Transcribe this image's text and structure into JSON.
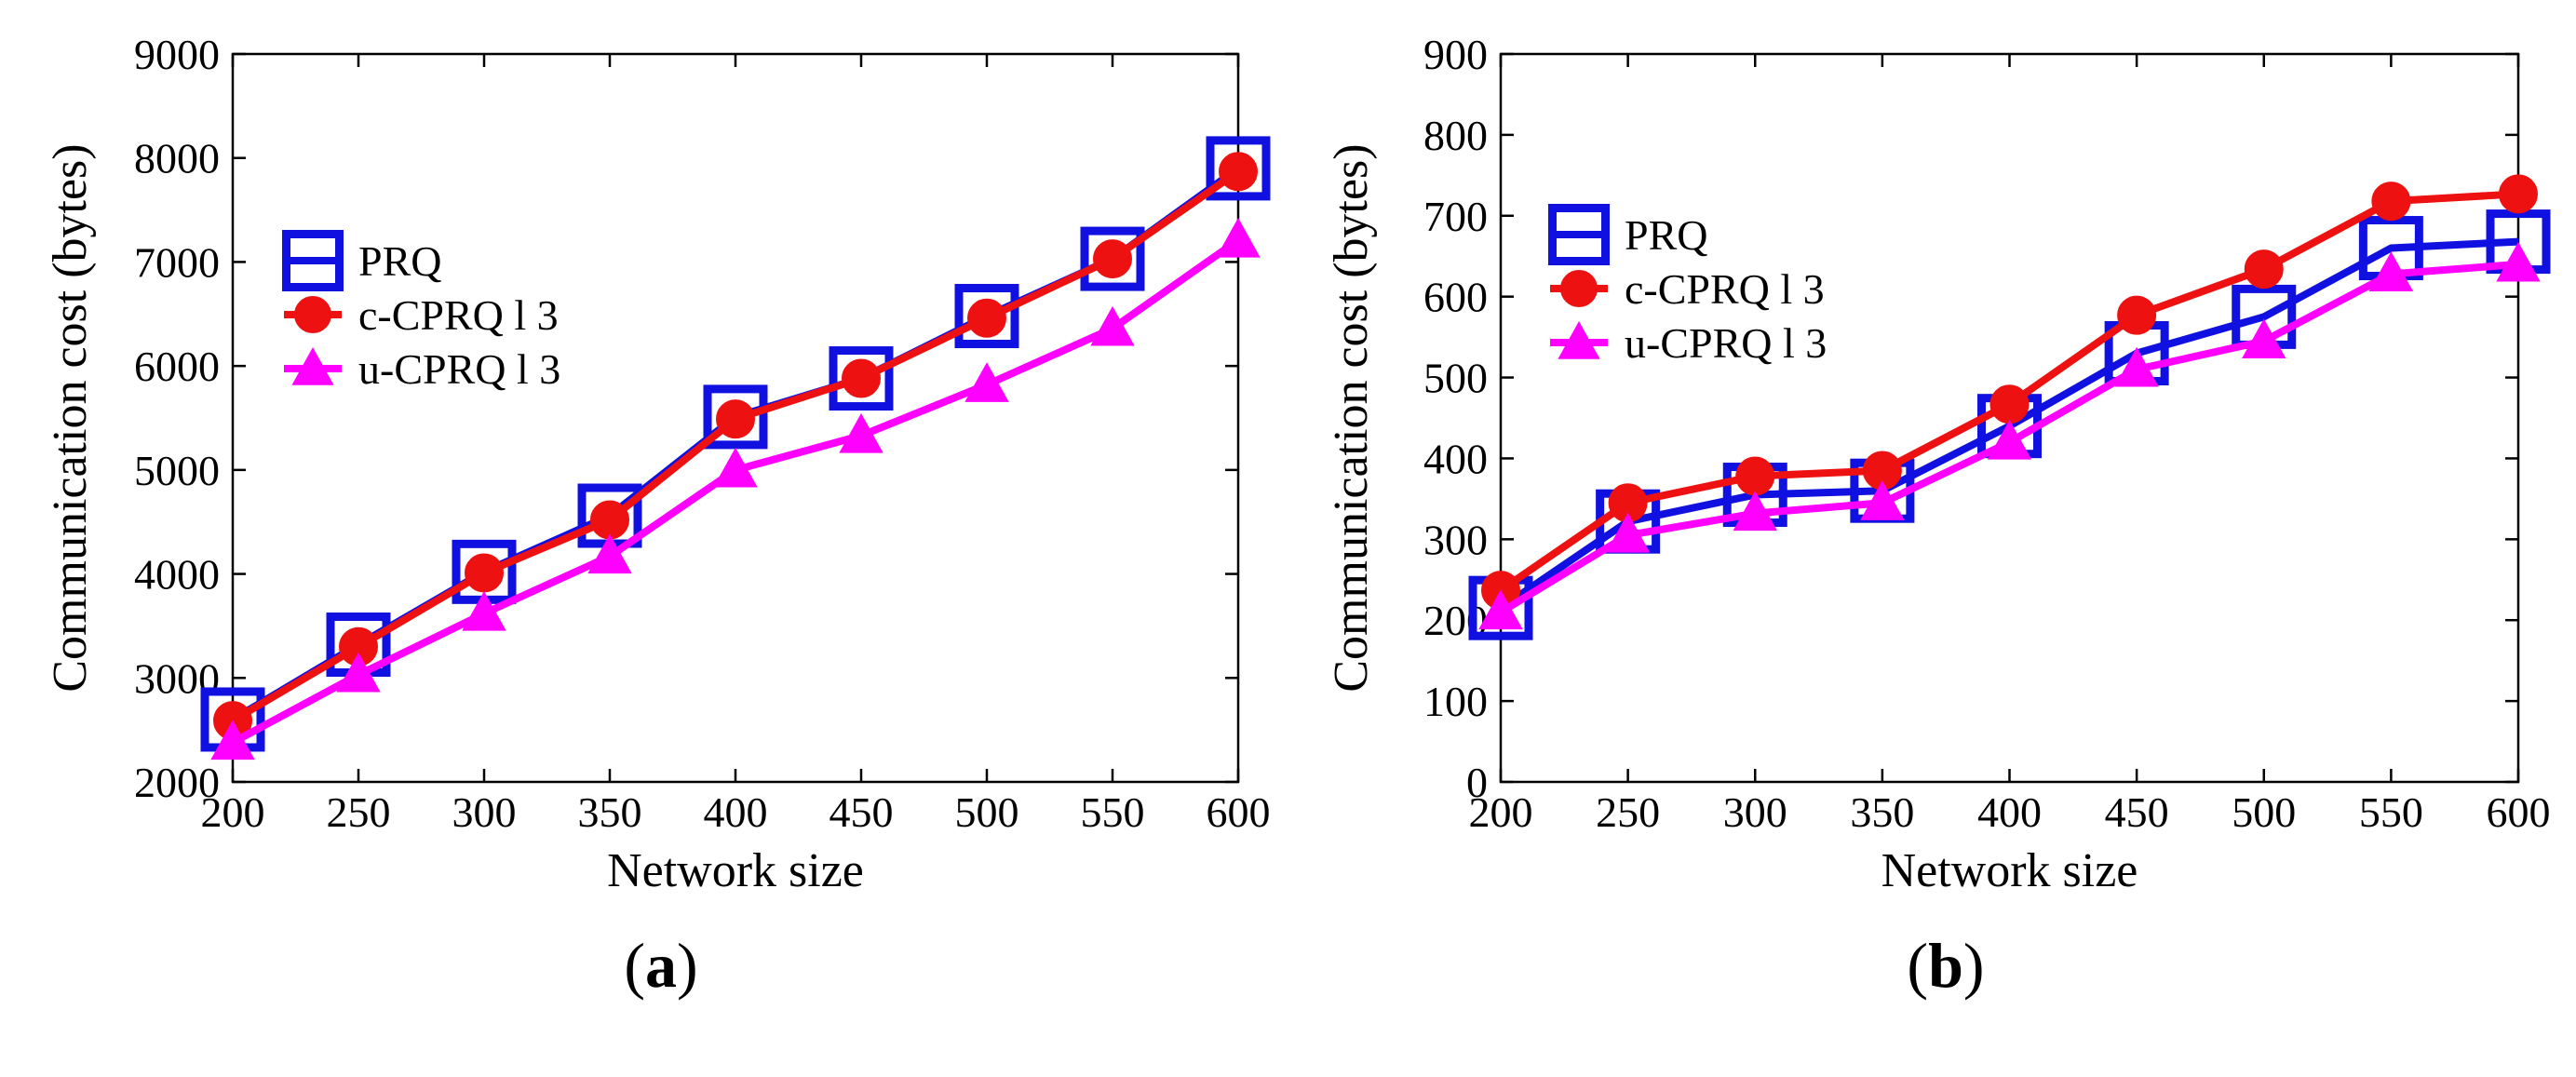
{
  "chart_data": [
    {
      "type": "line",
      "panel_label": "a",
      "xlabel": "Network size",
      "ylabel": "Communication cost (bytes)",
      "x": [
        200,
        250,
        300,
        350,
        400,
        450,
        500,
        550,
        600
      ],
      "xlim": [
        200,
        600
      ],
      "ylim": [
        2000,
        9000
      ],
      "xticks": [
        200,
        250,
        300,
        350,
        400,
        450,
        500,
        550,
        600
      ],
      "yticks": [
        2000,
        3000,
        4000,
        5000,
        6000,
        7000,
        8000,
        9000
      ],
      "grid": false,
      "legend_position": "center-left",
      "series": [
        {
          "name": "PRQ",
          "color": "#1010e0",
          "marker": "square",
          "values": [
            2600,
            3320,
            4020,
            4560,
            5510,
            5880,
            6480,
            7030,
            7900
          ]
        },
        {
          "name": "c-CPRQ l 3",
          "color": "#ee1111",
          "marker": "circle",
          "values": [
            2590,
            3300,
            4010,
            4520,
            5490,
            5880,
            6460,
            7030,
            7870
          ]
        },
        {
          "name": "u-CPRQ l 3",
          "color": "#ff00ff",
          "marker": "triangle",
          "values": [
            2380,
            3030,
            3620,
            4170,
            5000,
            5330,
            5820,
            6360,
            7210
          ]
        }
      ]
    },
    {
      "type": "line",
      "panel_label": "b",
      "xlabel": "Network size",
      "ylabel": "Communication cost (bytes)",
      "x": [
        200,
        250,
        300,
        350,
        400,
        450,
        500,
        550,
        600
      ],
      "xlim": [
        200,
        600
      ],
      "ylim": [
        0,
        900
      ],
      "xticks": [
        200,
        250,
        300,
        350,
        400,
        450,
        500,
        550,
        600
      ],
      "yticks": [
        0,
        100,
        200,
        300,
        400,
        500,
        600,
        700,
        800,
        900
      ],
      "grid": false,
      "legend_position": "top-left",
      "series": [
        {
          "name": "PRQ",
          "color": "#1010e0",
          "marker": "square",
          "values": [
            215,
            322,
            355,
            360,
            440,
            530,
            575,
            660,
            668
          ]
        },
        {
          "name": "c-CPRQ l 3",
          "color": "#ee1111",
          "marker": "circle",
          "values": [
            237,
            345,
            378,
            385,
            467,
            577,
            634,
            718,
            727
          ]
        },
        {
          "name": "u-CPRQ l 3",
          "color": "#ff00ff",
          "marker": "triangle",
          "values": [
            210,
            305,
            332,
            345,
            420,
            510,
            545,
            628,
            640
          ]
        }
      ]
    }
  ]
}
